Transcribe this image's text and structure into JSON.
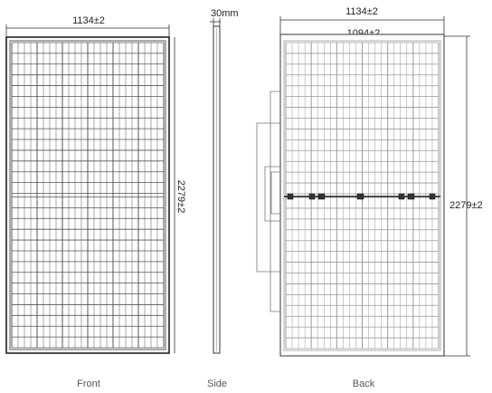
{
  "views": {
    "front": {
      "caption": "Front",
      "width_label": "1134±2",
      "height_label": "2279±2"
    },
    "side": {
      "caption": "Side",
      "thickness_label": "30mm"
    },
    "back": {
      "caption": "Back",
      "width_label": "1134±2",
      "inner_width_label": "1094±2",
      "height_label": "2279±2"
    }
  },
  "colors": {
    "line": "#333333",
    "cell_line": "#555555",
    "back_cell_line": "#9a9a9a",
    "junction": "#222222"
  }
}
